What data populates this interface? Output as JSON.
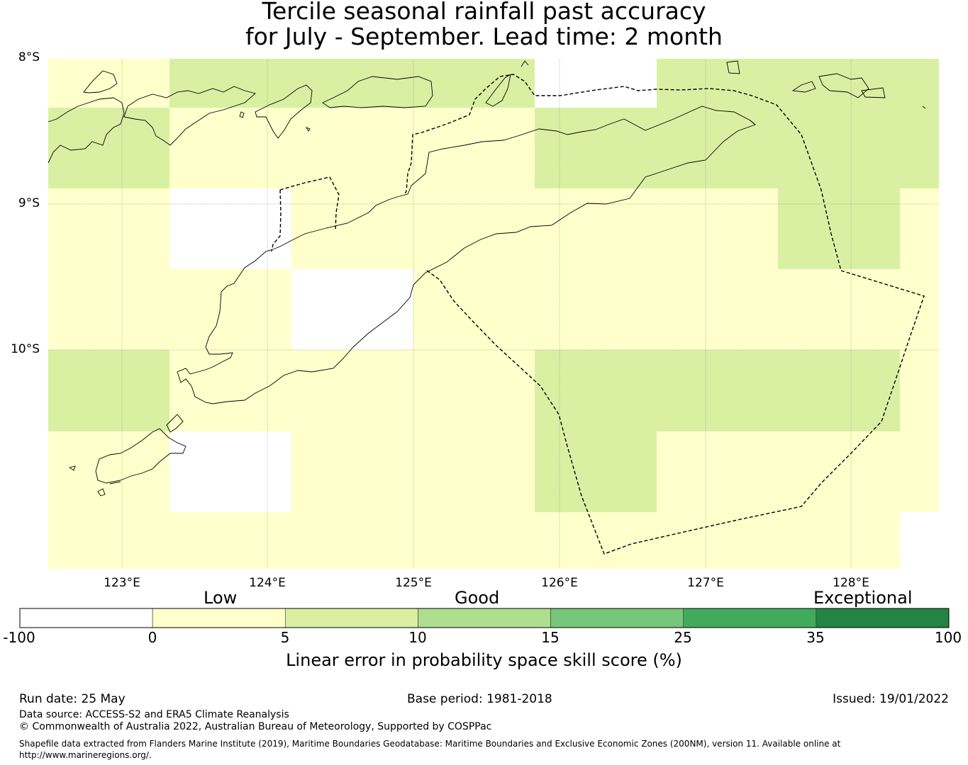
{
  "title": {
    "line1": "Tercile seasonal rainfall past accuracy",
    "line2": "for July - September. Lead time: 2 month"
  },
  "axes": {
    "lat_labels": [
      "8°S",
      "9°S",
      "10°S"
    ],
    "lon_labels": [
      "123°E",
      "124°E",
      "125°E",
      "126°E",
      "127°E",
      "128°E"
    ],
    "gridlines": true
  },
  "grid_cells": {
    "note_values": "LEPS skill score category per grid cell; 0-5 = pale yellow, 5-10 = light green, below 0 = white",
    "lon_edges": [
      122.5,
      123.33,
      124.17,
      125.0,
      125.83,
      126.67,
      127.5,
      128.33,
      128.6
    ],
    "lat_edges": [
      -8.0,
      -8.33,
      -8.89,
      -9.44,
      -10.0,
      -10.56,
      -11.11,
      -11.5
    ],
    "rows": [
      [
        "0-5",
        "5-10",
        "5-10",
        "5-10",
        "<0",
        "5-10",
        "5-10",
        "5-10"
      ],
      [
        "5-10",
        "0-5",
        "0-5",
        "0-5",
        "5-10",
        "5-10",
        "5-10",
        "5-10"
      ],
      [
        "0-5",
        "<0",
        "0-5",
        "0-5",
        "0-5",
        "0-5",
        "5-10",
        "0-5"
      ],
      [
        "0-5",
        "0-5",
        "<0",
        "0-5",
        "0-5",
        "0-5",
        "0-5",
        "0-5"
      ],
      [
        "5-10",
        "0-5",
        "0-5",
        "0-5",
        "5-10",
        "5-10",
        "5-10",
        "0-5"
      ],
      [
        "0-5",
        "<0",
        "0-5",
        "0-5",
        "5-10",
        "0-5",
        "0-5",
        "0-5"
      ],
      [
        "0-5",
        "0-5",
        "0-5",
        "0-5",
        "0-5",
        "0-5",
        "0-5",
        "<0"
      ]
    ]
  },
  "colorbar": {
    "categories": [
      "Low",
      "Good",
      "Exceptional"
    ],
    "ticks": [
      "-100",
      "0",
      "5",
      "10",
      "15",
      "25",
      "35",
      "100"
    ],
    "colors": [
      "#ffffff",
      "#ffffcc",
      "#d9f0a3",
      "#addd8e",
      "#78c679",
      "#41ab5d",
      "#238443"
    ],
    "label": "Linear error in probability space skill score (%)"
  },
  "footer": {
    "run_date": "Run date: 25 May",
    "base_period": "Base period: 1981-2018",
    "issued": "Issued: 19/01/2022",
    "data_source": "Data source: ACCESS-S2 and ERA5 Climate Reanalysis",
    "copyright": "© Commonwealth of Australia 2022, Australian Bureau of Meteorology, Supported by COSPPac",
    "shapefile_line1": "Shapefile data extracted from Flanders Marine Institute (2019), Maritime Boundaries Geodatabase: Maritime Boundaries and Exclusive Economic Zones (200NM), version 11. Available online at",
    "shapefile_line2": "http://www.marineregions.org/."
  }
}
